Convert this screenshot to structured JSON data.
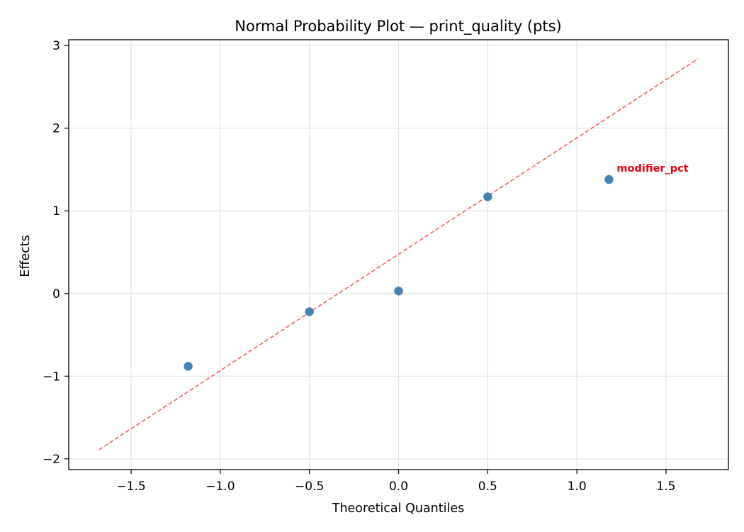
{
  "chart_data": {
    "type": "scatter",
    "title": "Normal Probability Plot — print_quality (pts)",
    "xlabel": "Theoretical Quantiles",
    "ylabel": "Effects",
    "xlim": [
      -1.85,
      1.85
    ],
    "ylim": [
      -2.13,
      3.07
    ],
    "grid": true,
    "x_ticks": [
      -1.5,
      -1.0,
      -0.5,
      0.0,
      0.5,
      1.0,
      1.5
    ],
    "x_tick_labels": [
      "−1.5",
      "−1.0",
      "−0.5",
      "0.0",
      "0.5",
      "1.0",
      "1.5"
    ],
    "y_ticks": [
      -2,
      -1,
      0,
      1,
      2,
      3
    ],
    "y_tick_labels": [
      "−2",
      "−1",
      "0",
      "1",
      "2",
      "3"
    ],
    "points": [
      {
        "x": -1.18,
        "y": -0.88
      },
      {
        "x": -0.5,
        "y": -0.22
      },
      {
        "x": 0.0,
        "y": 0.03
      },
      {
        "x": 0.5,
        "y": 1.17
      },
      {
        "x": 1.18,
        "y": 1.38
      }
    ],
    "point_color": "#4682b4",
    "reference_line": {
      "x": [
        -1.68,
        1.68
      ],
      "y": [
        -1.89,
        2.84
      ],
      "color": "#f0625a",
      "style": "dashed"
    },
    "annotations": [
      {
        "text": "modifier_pct",
        "x": 1.18,
        "y": 1.38,
        "color": "#e8000b"
      }
    ]
  }
}
